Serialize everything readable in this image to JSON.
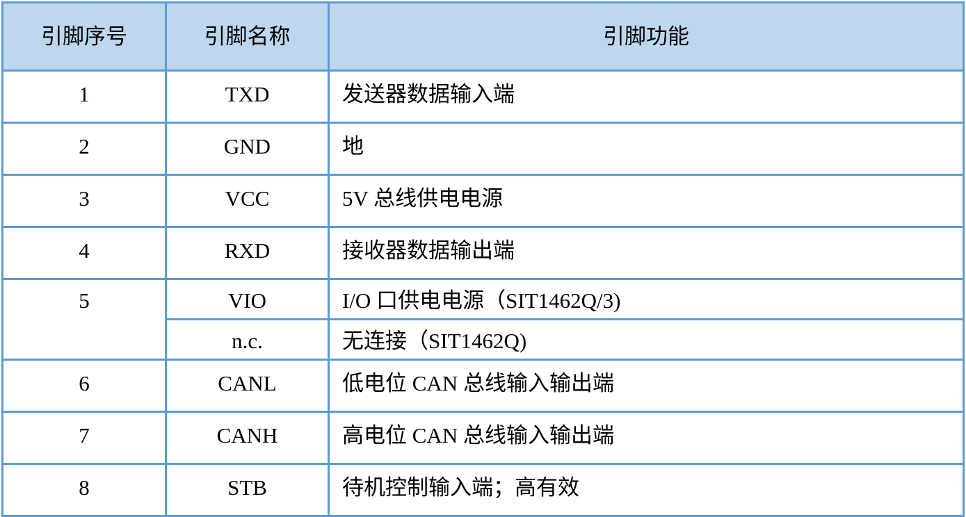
{
  "headers": [
    "引脚序号",
    "引脚名称",
    "引脚功能"
  ],
  "rows": [
    {
      "no": "1",
      "name": "TXD",
      "func": "发送器数据输入端"
    },
    {
      "no": "2",
      "name": "GND",
      "func": "地"
    },
    {
      "no": "3",
      "name": "VCC",
      "func": "5V 总线供电电源"
    },
    {
      "no": "4",
      "name": "RXD",
      "func": "接收器数据输出端"
    },
    {
      "no": "5",
      "name": "VIO",
      "func": "I/O 口供电电源（SIT1462Q/3)"
    },
    {
      "name": "n.c.",
      "func": "无连接（SIT1462Q)"
    },
    {
      "no": "6",
      "name": "CANL",
      "func": "低电位 CAN 总线输入输出端"
    },
    {
      "no": "7",
      "name": "CANH",
      "func": "高电位 CAN 总线输入输出端"
    },
    {
      "no": "8",
      "name": "STB",
      "func": "待机控制输入端；高有效"
    }
  ],
  "colors": {
    "border": "#5b9bd5",
    "header_bg": "#bdd7ee"
  }
}
